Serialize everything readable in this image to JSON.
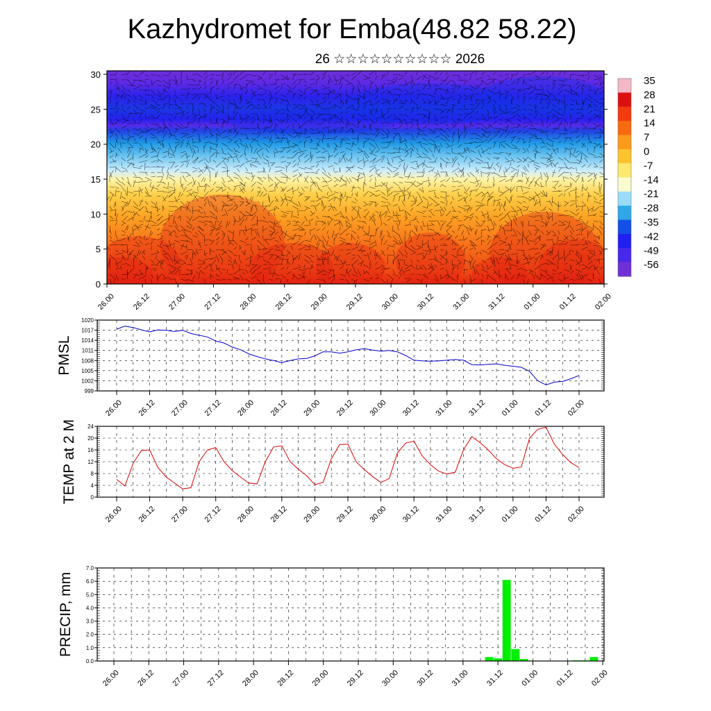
{
  "header": {
    "title": "Kazhydromet for Emba(48.82 58.22)",
    "subtitle": "26 ☆☆☆☆☆☆☆☆☆☆ 2026"
  },
  "time_labels": [
    "26.00",
    "26.12",
    "27.00",
    "27.12",
    "28.00",
    "28.12",
    "29.00",
    "29.12",
    "30.00",
    "30.12",
    "31.00",
    "31.12",
    "01.00",
    "01.12",
    "02.00"
  ],
  "chart_data": [
    {
      "id": "cross-section",
      "type": "heatmap",
      "x_ticks": [
        "26.00",
        "26.12",
        "27.00",
        "27.12",
        "28.00",
        "28.12",
        "29.00",
        "29.12",
        "30.00",
        "30.12",
        "31.00",
        "31.12",
        "01.00",
        "01.12",
        "02.00"
      ],
      "y_ticks": [
        "0",
        "5",
        "10",
        "15",
        "20",
        "25",
        "30"
      ],
      "ylim": [
        0,
        30.5
      ],
      "colorbar": {
        "labels": [
          "35",
          "28",
          "21",
          "14",
          "7",
          "0",
          "-7",
          "-14",
          "-21",
          "-28",
          "-35",
          "-42",
          "-49",
          "-56"
        ],
        "colors": [
          "#f2b8c6",
          "#dd1010",
          "#f23c10",
          "#f86a10",
          "#fc9a1a",
          "#fec430",
          "#fee870",
          "#fafcd0",
          "#9adcf8",
          "#30a8e8",
          "#1450e8",
          "#2020f0",
          "#4828ea",
          "#7030d8"
        ]
      },
      "overlay": "wind vectors"
    },
    {
      "id": "pmsl",
      "type": "line",
      "ylabel": "PMSL",
      "ylim": [
        999,
        1020
      ],
      "y_ticks": [
        "999",
        "1002",
        "1005",
        "1008",
        "1011",
        "1014",
        "1017",
        "1020"
      ],
      "x_ticks": [
        "26.00",
        "26.12",
        "27.00",
        "27.12",
        "28.00",
        "28.12",
        "29.00",
        "29.12",
        "30.00",
        "30.12",
        "31.00",
        "31.12",
        "01.00",
        "01.12",
        "02.00"
      ],
      "color": "#0000cc",
      "x": [
        0,
        3,
        6,
        9,
        12,
        15,
        18,
        21,
        24,
        27,
        30,
        33,
        36,
        39,
        42,
        45,
        48,
        51,
        54,
        57,
        60,
        63,
        66,
        69,
        72,
        75,
        78,
        81,
        84,
        87,
        90,
        93,
        96,
        99,
        102,
        105,
        108,
        111,
        114,
        117,
        120,
        123,
        126,
        129,
        132,
        135,
        138,
        141,
        144,
        147,
        150,
        153,
        156,
        159,
        162,
        165,
        168
      ],
      "values": [
        1017.3,
        1018.2,
        1017.8,
        1017.1,
        1016.5,
        1017.1,
        1017.0,
        1016.6,
        1017.0,
        1016.0,
        1015.5,
        1015.0,
        1013.8,
        1013.2,
        1012.0,
        1011.2,
        1010.0,
        1009.2,
        1008.5,
        1008.0,
        1007.4,
        1008.0,
        1008.5,
        1008.6,
        1009.4,
        1010.6,
        1010.6,
        1010.2,
        1010.6,
        1011.2,
        1011.5,
        1011.1,
        1010.8,
        1011.0,
        1010.6,
        1009.5,
        1008.1,
        1007.9,
        1007.8,
        1007.9,
        1008.1,
        1008.3,
        1008.1,
        1006.8,
        1006.7,
        1006.9,
        1007.0,
        1006.6,
        1006.3,
        1006.0,
        1004.8,
        1002.0,
        1000.8,
        1001.6,
        1001.8,
        1002.6,
        1003.6
      ]
    },
    {
      "id": "temp2m",
      "type": "line",
      "ylabel": "TEMP at 2 M",
      "ylim": [
        0,
        24
      ],
      "y_ticks": [
        "0",
        "4",
        "8",
        "12",
        "16",
        "20",
        "24"
      ],
      "x_ticks": [
        "26.00",
        "26.12",
        "27.00",
        "27.12",
        "28.00",
        "28.12",
        "29.00",
        "29.12",
        "30.00",
        "30.12",
        "31.00",
        "31.12",
        "01.00",
        "01.12",
        "02.00"
      ],
      "color": "#dd0000",
      "x": [
        0,
        3,
        6,
        9,
        12,
        15,
        18,
        21,
        24,
        27,
        30,
        33,
        36,
        39,
        42,
        45,
        48,
        51,
        54,
        57,
        60,
        63,
        66,
        69,
        72,
        75,
        78,
        81,
        84,
        87,
        90,
        93,
        96,
        99,
        102,
        105,
        108,
        111,
        114,
        117,
        120,
        123,
        126,
        129,
        132,
        135,
        138,
        141,
        144,
        147,
        150,
        153,
        156,
        159,
        162,
        165,
        168
      ],
      "values": [
        6.0,
        3.8,
        11.5,
        15.8,
        16.0,
        10.0,
        6.8,
        4.8,
        2.8,
        3.2,
        12.0,
        16.0,
        16.8,
        12.0,
        9.0,
        6.8,
        4.8,
        4.5,
        12.0,
        17.0,
        17.4,
        12.0,
        9.5,
        7.3,
        4.2,
        5.0,
        13.0,
        17.8,
        18.0,
        12.0,
        9.3,
        7.0,
        5.0,
        6.3,
        15.0,
        18.3,
        19.0,
        14.0,
        11.0,
        8.8,
        7.8,
        8.5,
        16.0,
        20.5,
        18.5,
        16.0,
        13.0,
        11.0,
        9.8,
        10.2,
        20.0,
        23.0,
        23.7,
        18.0,
        14.5,
        11.7,
        10.0
      ]
    },
    {
      "id": "precip",
      "type": "bar",
      "ylabel": "PRECIP, mm",
      "ylim": [
        0,
        7
      ],
      "y_ticks": [
        "0.0",
        "1.0",
        "2.0",
        "3.0",
        "4.0",
        "5.0",
        "6.0",
        "7.0"
      ],
      "x_ticks": [
        "26.00",
        "26.12",
        "27.00",
        "27.12",
        "28.00",
        "28.12",
        "29.00",
        "29.12",
        "30.00",
        "30.12",
        "31.00",
        "31.12",
        "01.00",
        "01.12",
        "02.00"
      ],
      "color": "#00ee00",
      "x": [
        129,
        132,
        135,
        138,
        141,
        144,
        159,
        162,
        165
      ],
      "values": [
        0.3,
        0.2,
        6.1,
        0.9,
        0.15,
        0.03,
        0.05,
        0.05,
        0.3
      ]
    }
  ]
}
